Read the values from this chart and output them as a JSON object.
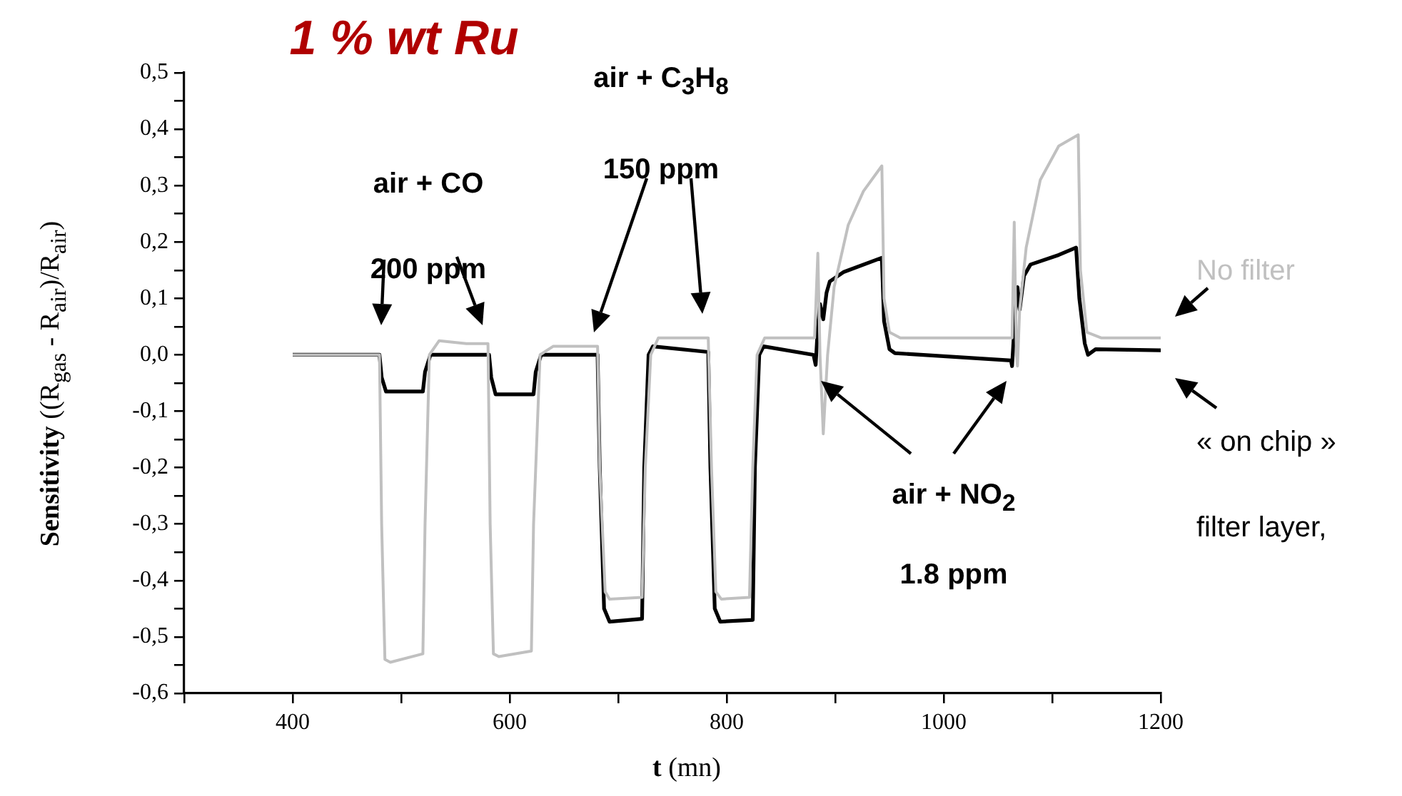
{
  "chart_data": {
    "type": "line",
    "title": "1 % wt Ru",
    "xlabel": "t (mn)",
    "ylabel": "Sensitivity ((R$_{gas}$ - R$_{air}$)/R$_{air}$)",
    "xlim": [
      300,
      1200
    ],
    "xticks": [
      {
        "value": 300,
        "label": null
      },
      400,
      {
        "value": 500,
        "label": null
      },
      600,
      {
        "value": 700,
        "label": null
      },
      800,
      {
        "value": 900,
        "label": null
      },
      1000,
      {
        "value": 1100,
        "label": null
      },
      1200
    ],
    "ylim": [
      -0.6,
      0.5
    ],
    "yticks": [
      {
        "value": -0.6,
        "label": "-0,6"
      },
      {
        "value": -0.55,
        "label": null
      },
      {
        "value": -0.5,
        "label": "-0,5"
      },
      {
        "value": -0.45,
        "label": null
      },
      {
        "value": -0.4,
        "label": "-0,4"
      },
      {
        "value": -0.35,
        "label": null
      },
      {
        "value": -0.3,
        "label": "-0,3"
      },
      {
        "value": -0.25,
        "label": null
      },
      {
        "value": -0.2,
        "label": "-0,2"
      },
      {
        "value": -0.15,
        "label": null
      },
      {
        "value": -0.1,
        "label": "-0,1"
      },
      {
        "value": -0.05,
        "label": null
      },
      {
        "value": 0,
        "label": "0,0"
      },
      {
        "value": 0.05,
        "label": null
      },
      {
        "value": 0.1,
        "label": "0,1"
      },
      {
        "value": 0.15,
        "label": null
      },
      {
        "value": 0.2,
        "label": "0,2"
      },
      {
        "value": 0.25,
        "label": null
      },
      {
        "value": 0.3,
        "label": "0,3"
      },
      {
        "value": 0.35,
        "label": null
      },
      {
        "value": 0.4,
        "label": "0,4"
      },
      {
        "value": 0.45,
        "label": null
      },
      {
        "value": 0.5,
        "label": "0,5"
      }
    ],
    "grid": false,
    "legend": false,
    "marker": "none",
    "annotations": [
      "air + CO",
      "200 ppm",
      "air + C$_{3}$H$_{8}$",
      "150 ppm",
      "air + NO$_{2}$",
      "1.8 ppm"
    ],
    "series": [
      {
        "name": "No filter",
        "color": "#c0c0c0",
        "x": [
          400,
          480,
          482,
          485,
          490,
          520,
          522,
          526,
          535,
          560,
          580,
          582,
          585,
          590,
          620,
          622,
          628,
          640,
          681,
          683,
          688,
          692,
          722,
          725,
          730,
          737,
          783,
          786,
          790,
          795,
          821,
          824,
          828,
          835,
          881,
          884,
          886,
          889,
          893,
          899,
          912,
          926,
          943,
          945,
          950,
          960,
          1063,
          1065,
          1067,
          1068,
          1070,
          1076,
          1089,
          1106,
          1124,
          1126,
          1132,
          1145,
          1200
        ],
        "values": [
          0,
          0,
          -0.3,
          -0.54,
          -0.545,
          -0.53,
          -0.3,
          0,
          0.025,
          0.02,
          0.02,
          -0.3,
          -0.53,
          -0.535,
          -0.525,
          -0.3,
          0,
          0.015,
          0.015,
          -0.2,
          -0.42,
          -0.433,
          -0.43,
          -0.2,
          0,
          0.03,
          0.03,
          -0.2,
          -0.42,
          -0.433,
          -0.43,
          -0.2,
          0,
          0.03,
          0.03,
          0.18,
          0,
          -0.14,
          0,
          0.12,
          0.23,
          0.29,
          0.335,
          0.1,
          0.04,
          0.03,
          0.03,
          0.235,
          0,
          -0.02,
          0.08,
          0.19,
          0.31,
          0.37,
          0.39,
          0.15,
          0.04,
          0.03,
          0.03
        ]
      },
      {
        "name": "« on chip » filter layer,",
        "color": "#000000",
        "x": [
          400,
          480,
          482,
          486,
          520,
          522,
          527,
          581,
          583,
          587,
          622,
          624,
          629,
          681,
          683,
          687,
          692,
          722,
          724,
          728,
          732,
          783,
          785,
          789,
          794,
          824,
          826,
          830,
          834,
          880,
          882,
          884,
          886,
          889,
          892,
          895,
          908,
          943,
          945,
          950,
          955,
          1062,
          1063,
          1066,
          1068,
          1070,
          1074,
          1080,
          1106,
          1122,
          1125,
          1130,
          1133,
          1140,
          1200
        ],
        "values": [
          0,
          0,
          -0.04,
          -0.065,
          -0.065,
          -0.03,
          0,
          0,
          -0.04,
          -0.07,
          -0.07,
          -0.03,
          0,
          0,
          -0.2,
          -0.45,
          -0.473,
          -0.468,
          -0.2,
          0,
          0.015,
          0.005,
          -0.2,
          -0.45,
          -0.473,
          -0.47,
          -0.2,
          0,
          0.015,
          0,
          -0.018,
          0.05,
          0.09,
          0.063,
          0.11,
          0.13,
          0.147,
          0.172,
          0.06,
          0.01,
          0.003,
          -0.01,
          -0.02,
          0.08,
          0.12,
          0.08,
          0.14,
          0.16,
          0.177,
          0.19,
          0.1,
          0.02,
          0,
          0.01,
          0.008
        ]
      }
    ]
  }
}
